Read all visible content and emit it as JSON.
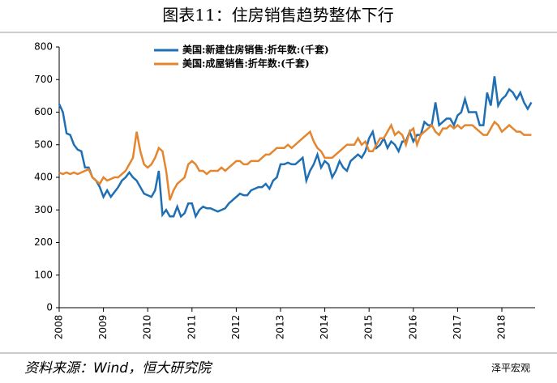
{
  "chart_data": {
    "type": "line",
    "title": "图表11：住房销售趋势整体下行",
    "source": "资料来源：Wind，恒大研究院",
    "watermark": "泽平宏观",
    "categories": [
      "2008",
      null,
      null,
      null,
      null,
      null,
      null,
      null,
      null,
      null,
      null,
      null,
      "2009",
      null,
      null,
      null,
      null,
      null,
      null,
      null,
      null,
      null,
      null,
      null,
      "2010",
      null,
      null,
      null,
      null,
      null,
      null,
      null,
      null,
      null,
      null,
      null,
      "2011",
      null,
      null,
      null,
      null,
      null,
      null,
      null,
      null,
      null,
      null,
      null,
      "2012",
      null,
      null,
      null,
      null,
      null,
      null,
      null,
      null,
      null,
      null,
      null,
      "2013",
      null,
      null,
      null,
      null,
      null,
      null,
      null,
      null,
      null,
      null,
      null,
      "2014",
      null,
      null,
      null,
      null,
      null,
      null,
      null,
      null,
      null,
      null,
      null,
      "2015",
      null,
      null,
      null,
      null,
      null,
      null,
      null,
      null,
      null,
      null,
      null,
      "2016",
      null,
      null,
      null,
      null,
      null,
      null,
      null,
      null,
      null,
      null,
      null,
      "2017",
      null,
      null,
      null,
      null,
      null,
      null,
      null,
      null,
      null,
      null,
      null,
      "2018",
      null,
      null,
      null,
      null,
      null,
      null,
      null,
      null
    ],
    "series": [
      {
        "name": "美国:新建住房销售:折年数:(千套)",
        "color": "#1f6fb4",
        "values": [
          625,
          600,
          535,
          530,
          500,
          485,
          480,
          430,
          430,
          400,
          390,
          370,
          340,
          360,
          340,
          355,
          370,
          390,
          400,
          415,
          400,
          390,
          370,
          350,
          345,
          340,
          360,
          420,
          285,
          300,
          280,
          280,
          310,
          280,
          290,
          320,
          320,
          280,
          300,
          310,
          305,
          305,
          300,
          295,
          300,
          305,
          320,
          330,
          340,
          350,
          345,
          345,
          360,
          365,
          370,
          370,
          380,
          365,
          390,
          400,
          440,
          440,
          445,
          440,
          440,
          450,
          460,
          390,
          420,
          440,
          470,
          430,
          450,
          440,
          400,
          420,
          450,
          430,
          420,
          450,
          460,
          470,
          460,
          480,
          520,
          540,
          490,
          500,
          520,
          490,
          510,
          500,
          480,
          510,
          510,
          540,
          510,
          530,
          530,
          570,
          560,
          560,
          630,
          560,
          570,
          580,
          580,
          560,
          590,
          600,
          640,
          600,
          600,
          600,
          560,
          560,
          660,
          620,
          710,
          620,
          640,
          650,
          670,
          660,
          640,
          660,
          630,
          610,
          630
        ]
      },
      {
        "name": "美国:成屋销售:折年数:(千套)",
        "color": "#e4862f",
        "values": [
          415,
          410,
          415,
          410,
          415,
          410,
          415,
          420,
          425,
          400,
          390,
          380,
          400,
          390,
          395,
          400,
          400,
          410,
          420,
          440,
          460,
          540,
          480,
          440,
          430,
          440,
          460,
          490,
          480,
          420,
          330,
          360,
          380,
          390,
          400,
          440,
          450,
          440,
          420,
          420,
          410,
          420,
          420,
          420,
          430,
          420,
          430,
          440,
          450,
          450,
          440,
          440,
          450,
          450,
          450,
          460,
          470,
          470,
          480,
          490,
          490,
          490,
          500,
          490,
          500,
          510,
          520,
          530,
          540,
          510,
          490,
          480,
          460,
          460,
          460,
          470,
          480,
          490,
          500,
          500,
          500,
          520,
          500,
          510,
          480,
          480,
          500,
          520,
          520,
          540,
          560,
          530,
          540,
          530,
          500,
          540,
          550,
          500,
          530,
          540,
          550,
          560,
          540,
          530,
          550,
          550,
          560,
          550,
          560,
          550,
          560,
          560,
          560,
          550,
          540,
          530,
          530,
          550,
          570,
          560,
          540,
          550,
          560,
          550,
          540,
          540,
          530,
          530,
          530
        ]
      }
    ],
    "ylim": [
      0,
      800
    ],
    "yticks": [
      0,
      100,
      200,
      300,
      400,
      500,
      600,
      700,
      800
    ],
    "legend": "upper-left"
  }
}
